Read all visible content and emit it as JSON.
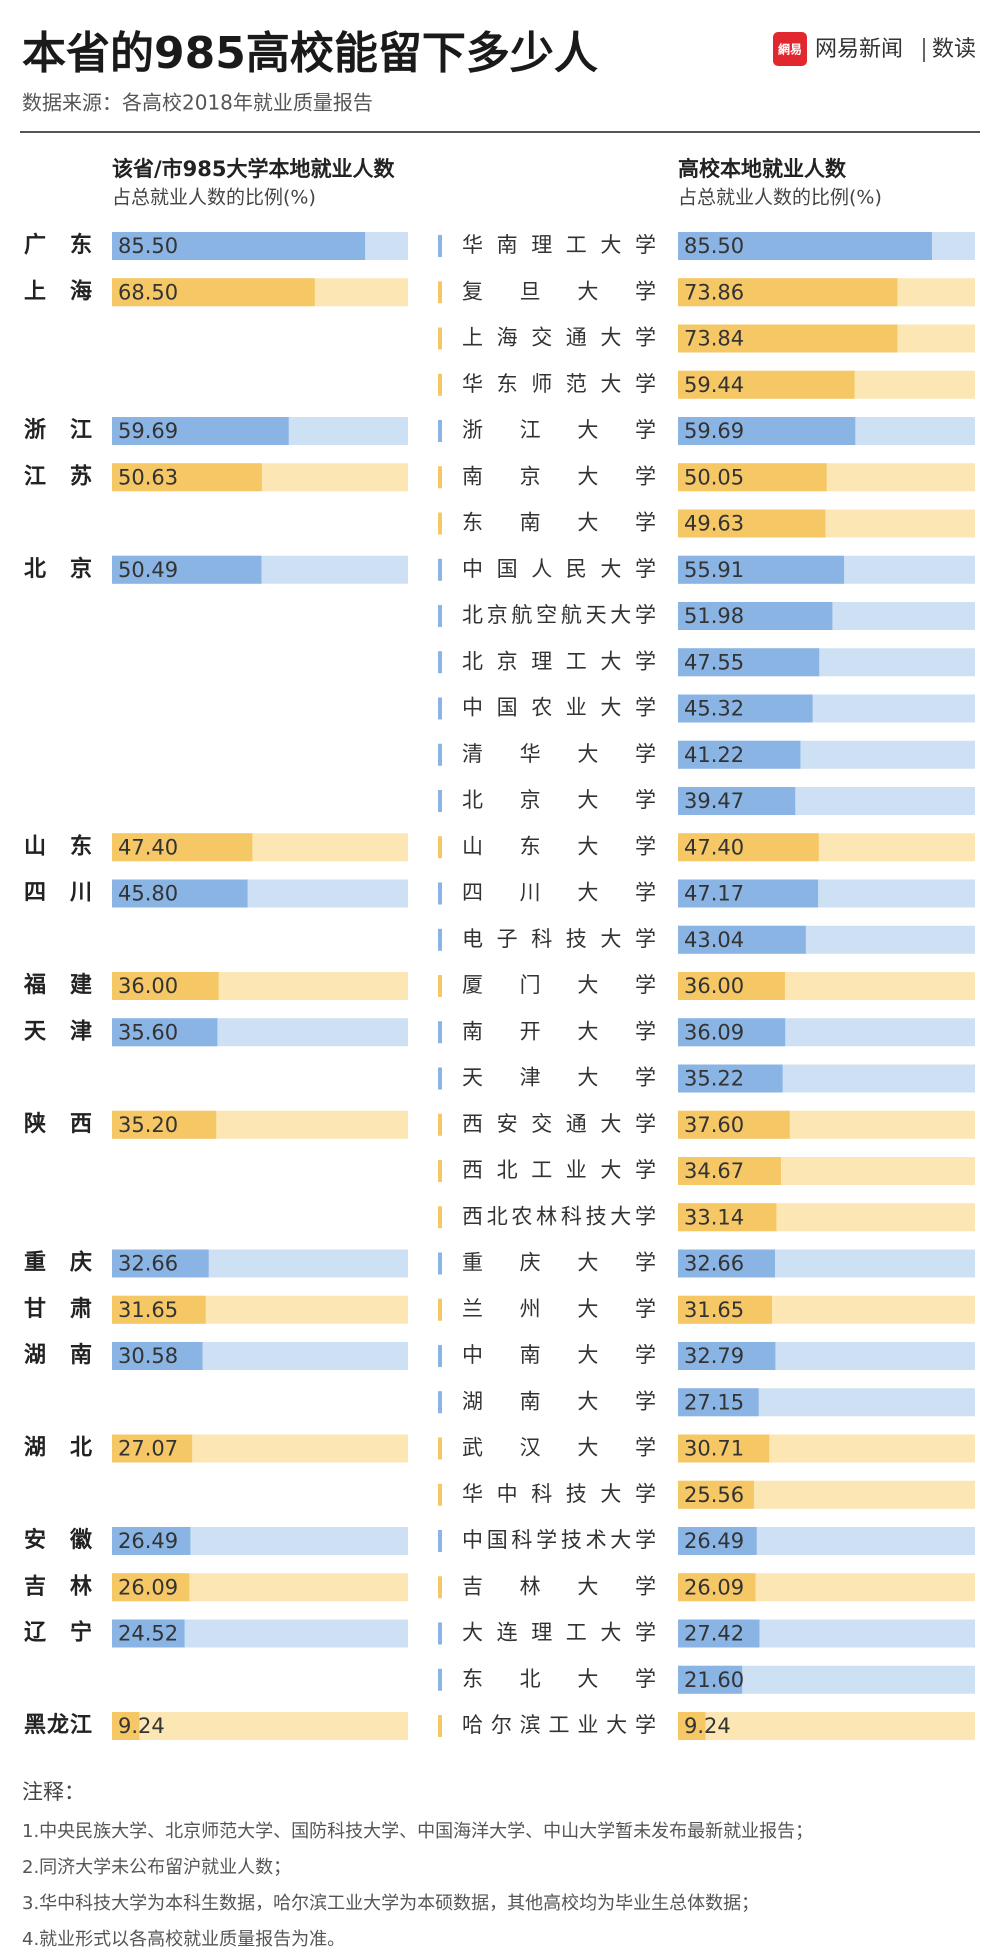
{
  "header": {
    "title": "本省的985高校能留下多少人",
    "source": "数据来源：各高校2018年就业质量报告",
    "logo_icon": "網易",
    "logo_text": "网易新闻",
    "brand": "数读"
  },
  "chart_data": {
    "type": "bar",
    "left_heading": "该省/市985大学本地就业人数",
    "left_subheading": "占总就业人数的比例(%)",
    "right_heading": "高校本地就业人数",
    "right_subheading": "占总就业人数的比例(%)",
    "xlim": [
      0,
      100
    ],
    "provinces": [
      {
        "name": "广东",
        "value": 85.5,
        "value_label": "85.50",
        "color": "#8ab4e4",
        "track": "#cde0f4",
        "universities": [
          {
            "name": "华南理工大学",
            "value": 85.5,
            "value_label": "85.50"
          }
        ]
      },
      {
        "name": "上海",
        "value": 68.5,
        "value_label": "68.50",
        "color": "#f6c765",
        "track": "#fce6b3",
        "universities": [
          {
            "name": "复旦大学",
            "value": 73.86
          },
          {
            "name": "上海交通大学",
            "value": 73.84
          },
          {
            "name": "华东师范大学",
            "value": 59.44
          }
        ]
      },
      {
        "name": "浙江",
        "value": 59.69,
        "color": "#8ab4e4",
        "track": "#cde0f4",
        "universities": [
          {
            "name": "浙江大学",
            "value": 59.69
          }
        ]
      },
      {
        "name": "江苏",
        "value": 50.63,
        "color": "#f6c765",
        "track": "#fce6b3",
        "universities": [
          {
            "name": "南京大学",
            "value": 50.05
          },
          {
            "name": "东南大学",
            "value": 49.63
          }
        ]
      },
      {
        "name": "北京",
        "value": 50.49,
        "color": "#8ab4e4",
        "track": "#cde0f4",
        "universities": [
          {
            "name": "中国人民大学",
            "value": 55.91
          },
          {
            "name": "北京航空航天大学",
            "value": 51.98
          },
          {
            "name": "北京理工大学",
            "value": 47.55
          },
          {
            "name": "中国农业大学",
            "value": 45.32
          },
          {
            "name": "清华大学",
            "value": 41.22
          },
          {
            "name": "北京大学",
            "value": 39.47
          }
        ]
      },
      {
        "name": "山东",
        "value": 47.4,
        "value_label": "47.40",
        "color": "#f6c765",
        "track": "#fce6b3",
        "universities": [
          {
            "name": "山东大学",
            "value": 47.4,
            "value_label": "47.40"
          }
        ]
      },
      {
        "name": "四川",
        "value": 45.8,
        "value_label": "45.80",
        "color": "#8ab4e4",
        "track": "#cde0f4",
        "universities": [
          {
            "name": "四川大学",
            "value": 47.17
          },
          {
            "name": "电子科技大学",
            "value": 43.04
          }
        ]
      },
      {
        "name": "福建",
        "value": 36,
        "value_label": "36.00",
        "color": "#f6c765",
        "track": "#fce6b3",
        "universities": [
          {
            "name": "厦门大学",
            "value": 36,
            "value_label": "36.00"
          }
        ]
      },
      {
        "name": "天津",
        "value": 35.6,
        "value_label": "35.60",
        "color": "#8ab4e4",
        "track": "#cde0f4",
        "universities": [
          {
            "name": "南开大学",
            "value": 36.09
          },
          {
            "name": "天津大学",
            "value": 35.22
          }
        ]
      },
      {
        "name": "陕西",
        "value": 35.2,
        "value_label": "35.20",
        "color": "#f6c765",
        "track": "#fce6b3",
        "universities": [
          {
            "name": "西安交通大学",
            "value": 37.6,
            "value_label": "37.60"
          },
          {
            "name": "西北工业大学",
            "value": 34.67
          },
          {
            "name": "西北农林科技大学",
            "value": 33.14
          }
        ]
      },
      {
        "name": "重庆",
        "value": 32.66,
        "color": "#8ab4e4",
        "track": "#cde0f4",
        "universities": [
          {
            "name": "重庆大学",
            "value": 32.66
          }
        ]
      },
      {
        "name": "甘肃",
        "value": 31.65,
        "color": "#f6c765",
        "track": "#fce6b3",
        "universities": [
          {
            "name": "兰州大学",
            "value": 31.65
          }
        ]
      },
      {
        "name": "湖南",
        "value": 30.58,
        "color": "#8ab4e4",
        "track": "#cde0f4",
        "universities": [
          {
            "name": "中南大学",
            "value": 32.79
          },
          {
            "name": "湖南大学",
            "value": 27.15
          }
        ]
      },
      {
        "name": "湖北",
        "value": 27.07,
        "color": "#f6c765",
        "track": "#fce6b3",
        "universities": [
          {
            "name": "武汉大学",
            "value": 30.71
          },
          {
            "name": "华中科技大学",
            "value": 25.56
          }
        ]
      },
      {
        "name": "安徽",
        "value": 26.49,
        "color": "#8ab4e4",
        "track": "#cde0f4",
        "universities": [
          {
            "name": "中国科学技术大学",
            "value": 26.49
          }
        ]
      },
      {
        "name": "吉林",
        "value": 26.09,
        "color": "#f6c765",
        "track": "#fce6b3",
        "universities": [
          {
            "name": "吉林大学",
            "value": 26.09
          }
        ]
      },
      {
        "name": "辽宁",
        "value": 24.52,
        "color": "#8ab4e4",
        "track": "#cde0f4",
        "universities": [
          {
            "name": "大连理工大学",
            "value": 27.42
          },
          {
            "name": "东北大学",
            "value": 21.6,
            "value_label": "21.60"
          }
        ]
      },
      {
        "name": "黑龙江",
        "value": 9.24,
        "color": "#f6c765",
        "track": "#fce6b3",
        "universities": [
          {
            "name": "哈尔滨工业大学",
            "value": 9.24
          }
        ]
      }
    ]
  },
  "notes": {
    "heading": "注释：",
    "items": [
      "1.中央民族大学、北京师范大学、国防科技大学、中国海洋大学、中山大学暂未发布最新就业报告；",
      "2.同济大学未公布留沪就业人数；",
      "3.华中科技大学为本科生数据，哈尔滨工业大学为本硕数据，其他高校均为毕业生总体数据；",
      "4.就业形式以各高校就业质量报告为准。"
    ]
  }
}
